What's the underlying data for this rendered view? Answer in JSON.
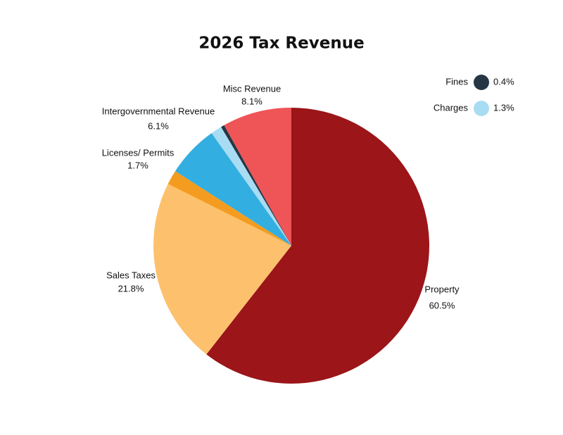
{
  "chart_data": {
    "type": "pie",
    "title": "2026 Tax Revenue",
    "categories": [
      "Property",
      "Sales Taxes",
      "Licenses/ Permits",
      "Intergovernmental Revenue",
      "Charges",
      "Fines",
      "Misc Revenue"
    ],
    "values": [
      60.5,
      21.8,
      1.7,
      6.1,
      1.3,
      0.4,
      8.1
    ],
    "value_labels": [
      "60.5%",
      "21.8%",
      "1.7%",
      "6.1%",
      "1.3%",
      "0.4%",
      "8.1%"
    ],
    "colors": [
      "#9b1519",
      "#fdc16d",
      "#f39c1f",
      "#33aee0",
      "#a8dcf2",
      "#263645",
      "#ef5456"
    ]
  }
}
